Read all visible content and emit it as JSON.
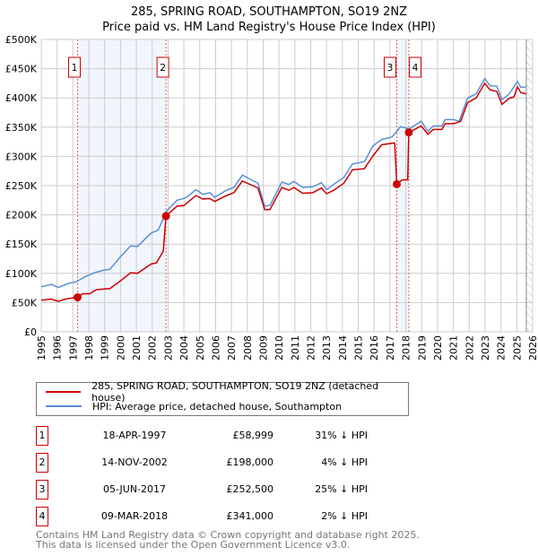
{
  "chart_data": {
    "type": "line",
    "title": "285, SPRING ROAD, SOUTHAMPTON, SO19 2NZ",
    "subtitle": "Price paid vs. HM Land Registry's House Price Index (HPI)",
    "xlim": [
      1995,
      2026
    ],
    "ylim": [
      0,
      500000
    ],
    "x_ticks": [
      "1995",
      "1996",
      "1997",
      "1998",
      "1999",
      "2000",
      "2001",
      "2002",
      "2003",
      "2004",
      "2005",
      "2006",
      "2007",
      "2008",
      "2009",
      "2010",
      "2011",
      "2012",
      "2013",
      "2014",
      "2015",
      "2016",
      "2017",
      "2018",
      "2019",
      "2020",
      "2021",
      "2022",
      "2023",
      "2024",
      "2025",
      "2026"
    ],
    "y_ticks": [
      {
        "v": 0,
        "l": "£0"
      },
      {
        "v": 50000,
        "l": "£50K"
      },
      {
        "v": 100000,
        "l": "£100K"
      },
      {
        "v": 150000,
        "l": "£150K"
      },
      {
        "v": 200000,
        "l": "£200K"
      },
      {
        "v": 250000,
        "l": "£250K"
      },
      {
        "v": 300000,
        "l": "£300K"
      },
      {
        "v": 350000,
        "l": "£350K"
      },
      {
        "v": 400000,
        "l": "£400K"
      },
      {
        "v": 450000,
        "l": "£450K"
      },
      {
        "v": 500000,
        "l": "£500K"
      }
    ],
    "grid": true,
    "series": [
      {
        "name": "285, SPRING ROAD, SOUTHAMPTON, SO19 2NZ (detached house)",
        "color": "#cc0000",
        "points": [
          [
            1995.0,
            54
          ],
          [
            1995.65,
            56
          ],
          [
            1996.08,
            52
          ],
          [
            1996.52,
            56
          ],
          [
            1997.29,
            59
          ],
          [
            1997.6,
            65
          ],
          [
            1998.04,
            65
          ],
          [
            1998.47,
            72
          ],
          [
            1998.9,
            73
          ],
          [
            1999.34,
            74
          ],
          [
            1999.99,
            87
          ],
          [
            2000.64,
            101
          ],
          [
            2001.07,
            100
          ],
          [
            2001.94,
            116
          ],
          [
            2002.27,
            118
          ],
          [
            2002.7,
            138
          ],
          [
            2002.87,
            198
          ],
          [
            2003.57,
            215
          ],
          [
            2004.0,
            216
          ],
          [
            2004.76,
            233
          ],
          [
            2005.2,
            227
          ],
          [
            2005.63,
            228
          ],
          [
            2005.95,
            223
          ],
          [
            2006.6,
            232
          ],
          [
            2007.15,
            238
          ],
          [
            2007.69,
            258
          ],
          [
            2008.67,
            246
          ],
          [
            2009.1,
            209
          ],
          [
            2009.43,
            209
          ],
          [
            2010.18,
            247
          ],
          [
            2010.62,
            242
          ],
          [
            2010.94,
            247
          ],
          [
            2011.49,
            237
          ],
          [
            2012.14,
            238
          ],
          [
            2012.68,
            246
          ],
          [
            2013.0,
            236
          ],
          [
            2013.44,
            242
          ],
          [
            2014.09,
            254
          ],
          [
            2014.63,
            277
          ],
          [
            2015.39,
            279
          ],
          [
            2015.93,
            301
          ],
          [
            2016.48,
            320
          ],
          [
            2017.3,
            323
          ],
          [
            2017.43,
            252.5
          ],
          [
            2017.78,
            260
          ],
          [
            2018.12,
            260
          ],
          [
            2018.19,
            341
          ],
          [
            2018.97,
            352
          ],
          [
            2019.4,
            338
          ],
          [
            2019.73,
            346
          ],
          [
            2020.27,
            346
          ],
          [
            2020.49,
            356
          ],
          [
            2021.03,
            356
          ],
          [
            2021.46,
            360
          ],
          [
            2021.9,
            392
          ],
          [
            2022.44,
            400
          ],
          [
            2022.98,
            425
          ],
          [
            2023.31,
            414
          ],
          [
            2023.74,
            411
          ],
          [
            2024.07,
            389
          ],
          [
            2024.5,
            399
          ],
          [
            2024.83,
            402
          ],
          [
            2025.04,
            419
          ],
          [
            2025.26,
            409
          ],
          [
            2025.59,
            407
          ]
        ]
      },
      {
        "name": "HPI: Average price, detached house, Southampton",
        "color": "#5b8fd4",
        "points": [
          [
            1995.0,
            77
          ],
          [
            1995.65,
            81
          ],
          [
            1996.08,
            76
          ],
          [
            1996.74,
            83
          ],
          [
            1997.17,
            85
          ],
          [
            1997.82,
            95
          ],
          [
            1998.36,
            101
          ],
          [
            1998.9,
            105
          ],
          [
            1999.34,
            107
          ],
          [
            1999.99,
            128
          ],
          [
            2000.64,
            147
          ],
          [
            2001.07,
            146
          ],
          [
            2001.94,
            169
          ],
          [
            2002.38,
            174
          ],
          [
            2002.92,
            207
          ],
          [
            2003.57,
            225
          ],
          [
            2004.0,
            228
          ],
          [
            2004.22,
            231
          ],
          [
            2004.76,
            243
          ],
          [
            2005.2,
            235
          ],
          [
            2005.63,
            238
          ],
          [
            2005.95,
            230
          ],
          [
            2006.6,
            241
          ],
          [
            2007.15,
            247
          ],
          [
            2007.69,
            268
          ],
          [
            2008.67,
            254
          ],
          [
            2009.1,
            215
          ],
          [
            2009.43,
            216
          ],
          [
            2010.18,
            256
          ],
          [
            2010.62,
            252
          ],
          [
            2010.94,
            257
          ],
          [
            2011.49,
            247
          ],
          [
            2012.14,
            248
          ],
          [
            2012.68,
            255
          ],
          [
            2013.0,
            243
          ],
          [
            2013.44,
            252
          ],
          [
            2014.09,
            264
          ],
          [
            2014.63,
            287
          ],
          [
            2015.39,
            291
          ],
          [
            2015.93,
            318
          ],
          [
            2016.48,
            329
          ],
          [
            2017.13,
            333
          ],
          [
            2017.67,
            351
          ],
          [
            2018.21,
            347
          ],
          [
            2018.97,
            360
          ],
          [
            2019.4,
            343
          ],
          [
            2019.73,
            352
          ],
          [
            2020.27,
            352
          ],
          [
            2020.49,
            363
          ],
          [
            2021.03,
            363
          ],
          [
            2021.36,
            360
          ],
          [
            2021.9,
            400
          ],
          [
            2022.44,
            407
          ],
          [
            2022.98,
            433
          ],
          [
            2023.31,
            421
          ],
          [
            2023.74,
            420
          ],
          [
            2024.07,
            397
          ],
          [
            2024.5,
            406
          ],
          [
            2025.04,
            428
          ],
          [
            2025.26,
            418
          ],
          [
            2025.59,
            419
          ]
        ]
      }
    ],
    "sales": [
      {
        "id": "1",
        "x": 1997.29,
        "y": 58999
      },
      {
        "id": "2",
        "x": 2002.87,
        "y": 198000
      },
      {
        "id": "3",
        "x": 2017.43,
        "y": 252500
      },
      {
        "id": "4",
        "x": 2018.19,
        "y": 341000
      }
    ],
    "shaded_ranges": [
      [
        1997.29,
        2002.87
      ],
      [
        2017.43,
        2018.19
      ]
    ],
    "forecast_from": 2025.6
  },
  "legend": {
    "items": [
      "285, SPRING ROAD, SOUTHAMPTON, SO19 2NZ (detached house)",
      "HPI: Average price, detached house, Southampton"
    ]
  },
  "table": [
    {
      "num": "1",
      "date": "18-APR-1997",
      "price": "£58,999",
      "hpi": "31% ↓ HPI"
    },
    {
      "num": "2",
      "date": "14-NOV-2002",
      "price": "£198,000",
      "hpi": "4% ↓ HPI"
    },
    {
      "num": "3",
      "date": "05-JUN-2017",
      "price": "£252,500",
      "hpi": "25% ↓ HPI"
    },
    {
      "num": "4",
      "date": "09-MAR-2018",
      "price": "£341,000",
      "hpi": "2% ↓ HPI"
    }
  ],
  "footer": {
    "line1": "Contains HM Land Registry data © Crown copyright and database right 2025.",
    "line2": "This data is licensed under the Open Government Licence v3.0."
  }
}
